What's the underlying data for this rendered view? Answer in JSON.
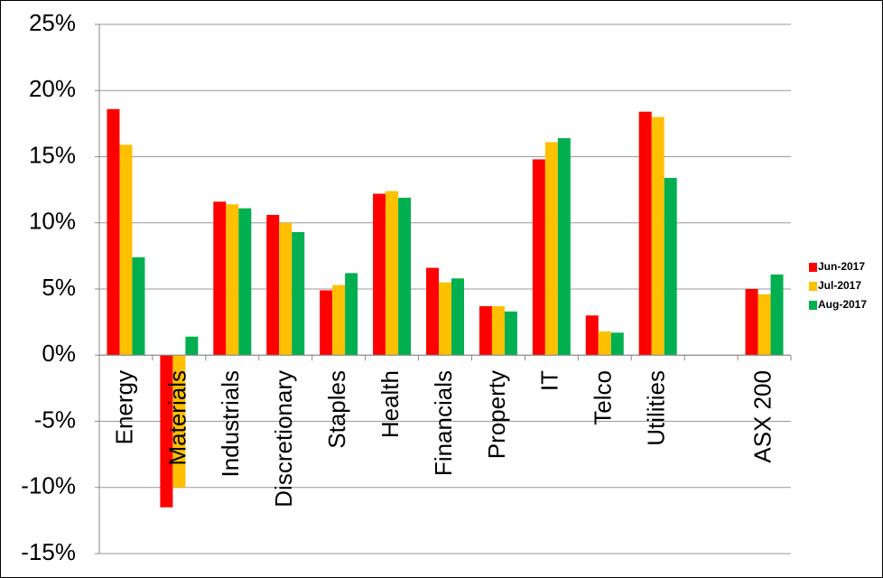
{
  "chart_data": {
    "type": "bar",
    "categories": [
      "Energy",
      "Materials",
      "Industrials",
      "Discretionary",
      "Staples",
      "Health",
      "Financials",
      "Property",
      "IT",
      "Telco",
      "Utilities",
      null,
      "ASX 200"
    ],
    "series": [
      {
        "name": "Jun-2017",
        "color": "#ff0000",
        "values": [
          18.6,
          -11.5,
          11.6,
          10.6,
          4.9,
          12.2,
          6.6,
          3.7,
          14.8,
          3.0,
          18.4,
          null,
          5.0
        ]
      },
      {
        "name": "Jul-2017",
        "color": "#ffc000",
        "values": [
          15.9,
          -10.0,
          11.4,
          10.0,
          5.3,
          12.4,
          5.5,
          3.7,
          16.1,
          1.8,
          18.0,
          null,
          4.6
        ]
      },
      {
        "name": "Aug-2017",
        "color": "#00b050",
        "values": [
          7.4,
          1.4,
          11.1,
          9.3,
          6.2,
          11.9,
          5.8,
          3.3,
          16.4,
          1.7,
          13.4,
          null,
          6.1
        ]
      }
    ],
    "ylim": [
      -15,
      25
    ],
    "yticks": [
      {
        "value": -15,
        "label": "-15%"
      },
      {
        "value": -10,
        "label": "-10%"
      },
      {
        "value": -5,
        "label": "-5%"
      },
      {
        "value": 0,
        "label": "0%"
      },
      {
        "value": 5,
        "label": "5%"
      },
      {
        "value": 10,
        "label": "10%"
      },
      {
        "value": 15,
        "label": "15%"
      },
      {
        "value": 20,
        "label": "20%"
      },
      {
        "value": 25,
        "label": "25%"
      }
    ],
    "grid": true,
    "legend": "right"
  }
}
